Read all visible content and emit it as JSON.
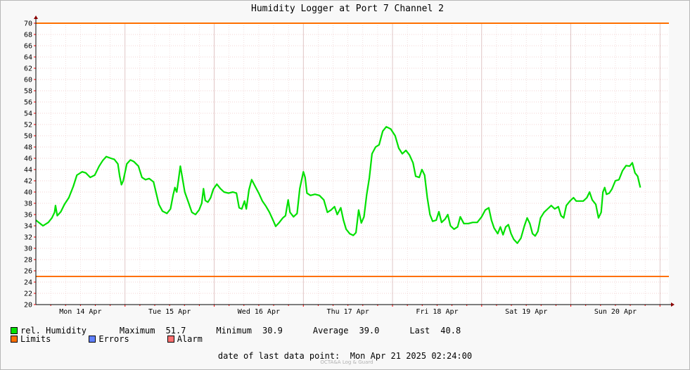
{
  "chart_data": {
    "type": "line",
    "title": "Humidity Logger at Port 7 Channel 2",
    "ylim": [
      20,
      70
    ],
    "y_ticks": [
      20,
      22,
      24,
      26,
      28,
      30,
      32,
      34,
      36,
      38,
      40,
      42,
      44,
      46,
      48,
      50,
      52,
      54,
      56,
      58,
      60,
      62,
      64,
      66,
      68,
      70
    ],
    "x_range_days": [
      0,
      7.1
    ],
    "day_labels": [
      "Mon 14 Apr",
      "Tue 15 Apr",
      "Wed 16 Apr",
      "Thu 17 Apr",
      "Fri 18 Apr",
      "Sat 19 Apr",
      "Sun 20 Apr"
    ],
    "limits": [
      70,
      25
    ],
    "series": [
      {
        "name": "rel. Humidity",
        "color": "#00e000",
        "points": [
          [
            0.0,
            35.0
          ],
          [
            0.04,
            34.5
          ],
          [
            0.08,
            34.0
          ],
          [
            0.14,
            34.6
          ],
          [
            0.18,
            35.4
          ],
          [
            0.21,
            36.4
          ],
          [
            0.22,
            37.6
          ],
          [
            0.24,
            35.8
          ],
          [
            0.28,
            36.5
          ],
          [
            0.32,
            37.8
          ],
          [
            0.37,
            39.0
          ],
          [
            0.42,
            41.0
          ],
          [
            0.46,
            43.0
          ],
          [
            0.52,
            43.6
          ],
          [
            0.56,
            43.4
          ],
          [
            0.61,
            42.6
          ],
          [
            0.66,
            43.0
          ],
          [
            0.71,
            44.6
          ],
          [
            0.75,
            45.6
          ],
          [
            0.79,
            46.3
          ],
          [
            0.84,
            46.0
          ],
          [
            0.88,
            45.8
          ],
          [
            0.92,
            45.0
          ],
          [
            0.94,
            42.8
          ],
          [
            0.96,
            41.3
          ],
          [
            0.98,
            42.0
          ],
          [
            1.02,
            45.0
          ],
          [
            1.06,
            45.7
          ],
          [
            1.1,
            45.4
          ],
          [
            1.15,
            44.6
          ],
          [
            1.19,
            42.6
          ],
          [
            1.23,
            42.2
          ],
          [
            1.27,
            42.4
          ],
          [
            1.32,
            41.8
          ],
          [
            1.35,
            39.8
          ],
          [
            1.38,
            37.8
          ],
          [
            1.42,
            36.6
          ],
          [
            1.47,
            36.2
          ],
          [
            1.51,
            37.0
          ],
          [
            1.54,
            39.5
          ],
          [
            1.56,
            40.8
          ],
          [
            1.58,
            40.0
          ],
          [
            1.6,
            42.2
          ],
          [
            1.62,
            44.6
          ],
          [
            1.64,
            42.8
          ],
          [
            1.67,
            40.0
          ],
          [
            1.71,
            38.2
          ],
          [
            1.75,
            36.4
          ],
          [
            1.79,
            36.0
          ],
          [
            1.83,
            36.8
          ],
          [
            1.86,
            38.0
          ],
          [
            1.88,
            40.6
          ],
          [
            1.9,
            38.5
          ],
          [
            1.93,
            38.2
          ],
          [
            1.96,
            39.0
          ],
          [
            1.99,
            40.5
          ],
          [
            2.03,
            41.4
          ],
          [
            2.07,
            40.6
          ],
          [
            2.11,
            40.0
          ],
          [
            2.16,
            39.8
          ],
          [
            2.21,
            40.0
          ],
          [
            2.25,
            39.8
          ],
          [
            2.28,
            37.2
          ],
          [
            2.31,
            37.0
          ],
          [
            2.34,
            38.4
          ],
          [
            2.36,
            37.0
          ],
          [
            2.39,
            40.4
          ],
          [
            2.42,
            42.2
          ],
          [
            2.46,
            41.0
          ],
          [
            2.5,
            39.8
          ],
          [
            2.54,
            38.4
          ],
          [
            2.58,
            37.5
          ],
          [
            2.62,
            36.4
          ],
          [
            2.66,
            35.0
          ],
          [
            2.69,
            33.9
          ],
          [
            2.73,
            34.6
          ],
          [
            2.77,
            35.4
          ],
          [
            2.8,
            35.8
          ],
          [
            2.83,
            38.6
          ],
          [
            2.85,
            36.4
          ],
          [
            2.89,
            35.6
          ],
          [
            2.93,
            36.2
          ],
          [
            2.96,
            40.6
          ],
          [
            3.0,
            43.6
          ],
          [
            3.02,
            42.6
          ],
          [
            3.04,
            39.8
          ],
          [
            3.08,
            39.4
          ],
          [
            3.13,
            39.6
          ],
          [
            3.18,
            39.4
          ],
          [
            3.23,
            38.6
          ],
          [
            3.27,
            36.4
          ],
          [
            3.31,
            36.8
          ],
          [
            3.35,
            37.4
          ],
          [
            3.38,
            36.0
          ],
          [
            3.42,
            37.2
          ],
          [
            3.45,
            35.0
          ],
          [
            3.48,
            33.4
          ],
          [
            3.52,
            32.6
          ],
          [
            3.56,
            32.3
          ],
          [
            3.59,
            32.8
          ],
          [
            3.62,
            36.8
          ],
          [
            3.65,
            34.5
          ],
          [
            3.68,
            35.6
          ],
          [
            3.71,
            39.5
          ],
          [
            3.74,
            42.5
          ],
          [
            3.77,
            46.8
          ],
          [
            3.81,
            48.0
          ],
          [
            3.85,
            48.4
          ],
          [
            3.89,
            50.8
          ],
          [
            3.93,
            51.6
          ],
          [
            3.98,
            51.2
          ],
          [
            4.03,
            50.0
          ],
          [
            4.07,
            47.8
          ],
          [
            4.11,
            46.8
          ],
          [
            4.15,
            47.4
          ],
          [
            4.19,
            46.6
          ],
          [
            4.23,
            45.2
          ],
          [
            4.26,
            42.8
          ],
          [
            4.3,
            42.6
          ],
          [
            4.33,
            44.0
          ],
          [
            4.36,
            43.0
          ],
          [
            4.39,
            39.0
          ],
          [
            4.42,
            36.0
          ],
          [
            4.45,
            34.8
          ],
          [
            4.49,
            35.0
          ],
          [
            4.52,
            36.5
          ],
          [
            4.55,
            34.6
          ],
          [
            4.59,
            35.2
          ],
          [
            4.62,
            36.0
          ],
          [
            4.65,
            34.0
          ],
          [
            4.69,
            33.4
          ],
          [
            4.73,
            33.8
          ],
          [
            4.76,
            35.6
          ],
          [
            4.8,
            34.4
          ],
          [
            4.85,
            34.4
          ],
          [
            4.9,
            34.6
          ],
          [
            4.95,
            34.6
          ],
          [
            5.0,
            35.6
          ],
          [
            5.04,
            36.8
          ],
          [
            5.08,
            37.2
          ],
          [
            5.11,
            35.0
          ],
          [
            5.14,
            33.6
          ],
          [
            5.18,
            32.6
          ],
          [
            5.21,
            33.8
          ],
          [
            5.24,
            32.4
          ],
          [
            5.27,
            33.8
          ],
          [
            5.3,
            34.2
          ],
          [
            5.33,
            32.6
          ],
          [
            5.36,
            31.6
          ],
          [
            5.4,
            30.9
          ],
          [
            5.44,
            31.8
          ],
          [
            5.48,
            34.0
          ],
          [
            5.51,
            35.4
          ],
          [
            5.54,
            34.4
          ],
          [
            5.57,
            32.6
          ],
          [
            5.6,
            32.2
          ],
          [
            5.63,
            33.0
          ],
          [
            5.66,
            35.4
          ],
          [
            5.7,
            36.4
          ],
          [
            5.74,
            37.0
          ],
          [
            5.78,
            37.6
          ],
          [
            5.82,
            37.0
          ],
          [
            5.86,
            37.4
          ],
          [
            5.89,
            35.8
          ],
          [
            5.92,
            35.4
          ],
          [
            5.95,
            37.6
          ],
          [
            5.99,
            38.4
          ],
          [
            6.03,
            39.0
          ],
          [
            6.06,
            38.4
          ],
          [
            6.1,
            38.4
          ],
          [
            6.14,
            38.4
          ],
          [
            6.18,
            39.0
          ],
          [
            6.21,
            40.0
          ],
          [
            6.24,
            38.6
          ],
          [
            6.28,
            37.8
          ],
          [
            6.31,
            35.4
          ],
          [
            6.34,
            36.4
          ],
          [
            6.36,
            40.0
          ],
          [
            6.38,
            40.8
          ],
          [
            6.4,
            39.6
          ],
          [
            6.43,
            39.8
          ],
          [
            6.46,
            40.5
          ],
          [
            6.5,
            42.0
          ],
          [
            6.54,
            42.2
          ],
          [
            6.58,
            43.8
          ],
          [
            6.62,
            44.7
          ],
          [
            6.66,
            44.6
          ],
          [
            6.69,
            45.2
          ],
          [
            6.72,
            43.4
          ],
          [
            6.75,
            42.8
          ],
          [
            6.77,
            41.4
          ],
          [
            6.78,
            40.8
          ]
        ]
      },
      {
        "name": "Limits",
        "color": "#ff7000"
      },
      {
        "name": "Errors",
        "color": "#6080ff"
      },
      {
        "name": "Alarm",
        "color": "#ff7070"
      }
    ]
  },
  "stats": {
    "max_label": "Maximum",
    "max_value": "51.7",
    "min_label": "Minimum",
    "min_value": "30.9",
    "avg_label": "Average",
    "avg_value": "39.0",
    "last_label": "Last",
    "last_value": "40.8"
  },
  "last_point": {
    "label": "date of last data point:",
    "value": "Mon Apr 21 2025 02:24:00"
  },
  "footer": "OCTA&A Log & Guard"
}
